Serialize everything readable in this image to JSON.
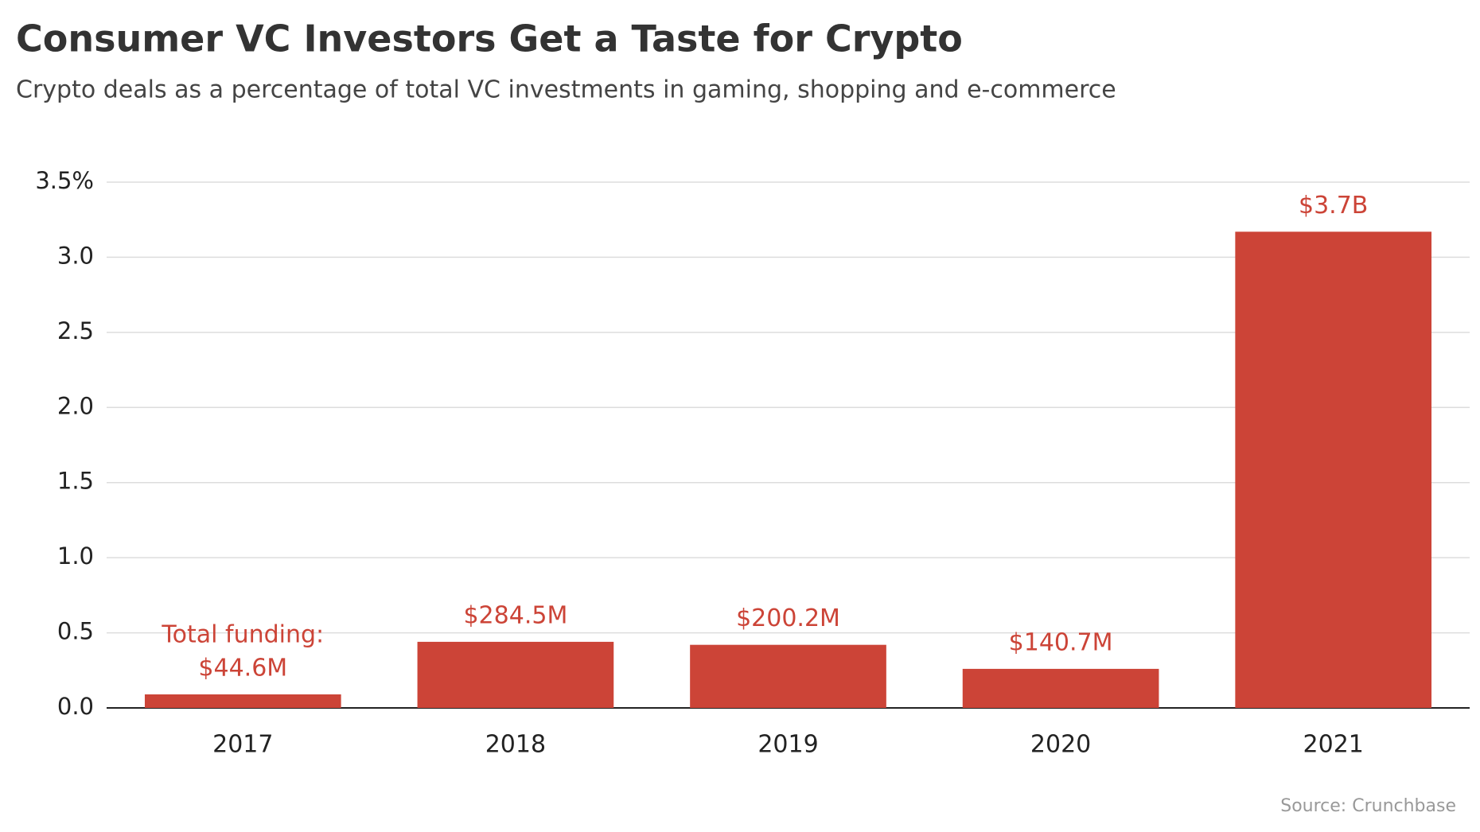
{
  "chart_data": {
    "type": "bar",
    "title": "Consumer VC Investors Get a Taste for Crypto",
    "subtitle": "Crypto deals as a percentage of total VC investments in gaming, shopping and e-commerce",
    "categories": [
      "2017",
      "2018",
      "2019",
      "2020",
      "2021"
    ],
    "values": [
      0.09,
      0.44,
      0.42,
      0.26,
      3.17
    ],
    "color": "#cc4437",
    "funding_prefix": "Total funding:",
    "funding_labels": [
      "$44.6M",
      "$284.5M",
      "$200.2M",
      "$140.7M",
      "$3.7B"
    ],
    "ylim": [
      0,
      3.5
    ],
    "yticks": [
      {
        "value": 0,
        "label": "0.0"
      },
      0.5,
      {
        "value": 1,
        "label": "1.0"
      },
      1.5,
      {
        "value": 2,
        "label": "2.0"
      },
      2.5,
      {
        "value": 3,
        "label": "3.0"
      },
      {
        "value": 3.5,
        "label": "3.5%"
      }
    ],
    "grid": true,
    "source": "Source: Crunchbase"
  }
}
